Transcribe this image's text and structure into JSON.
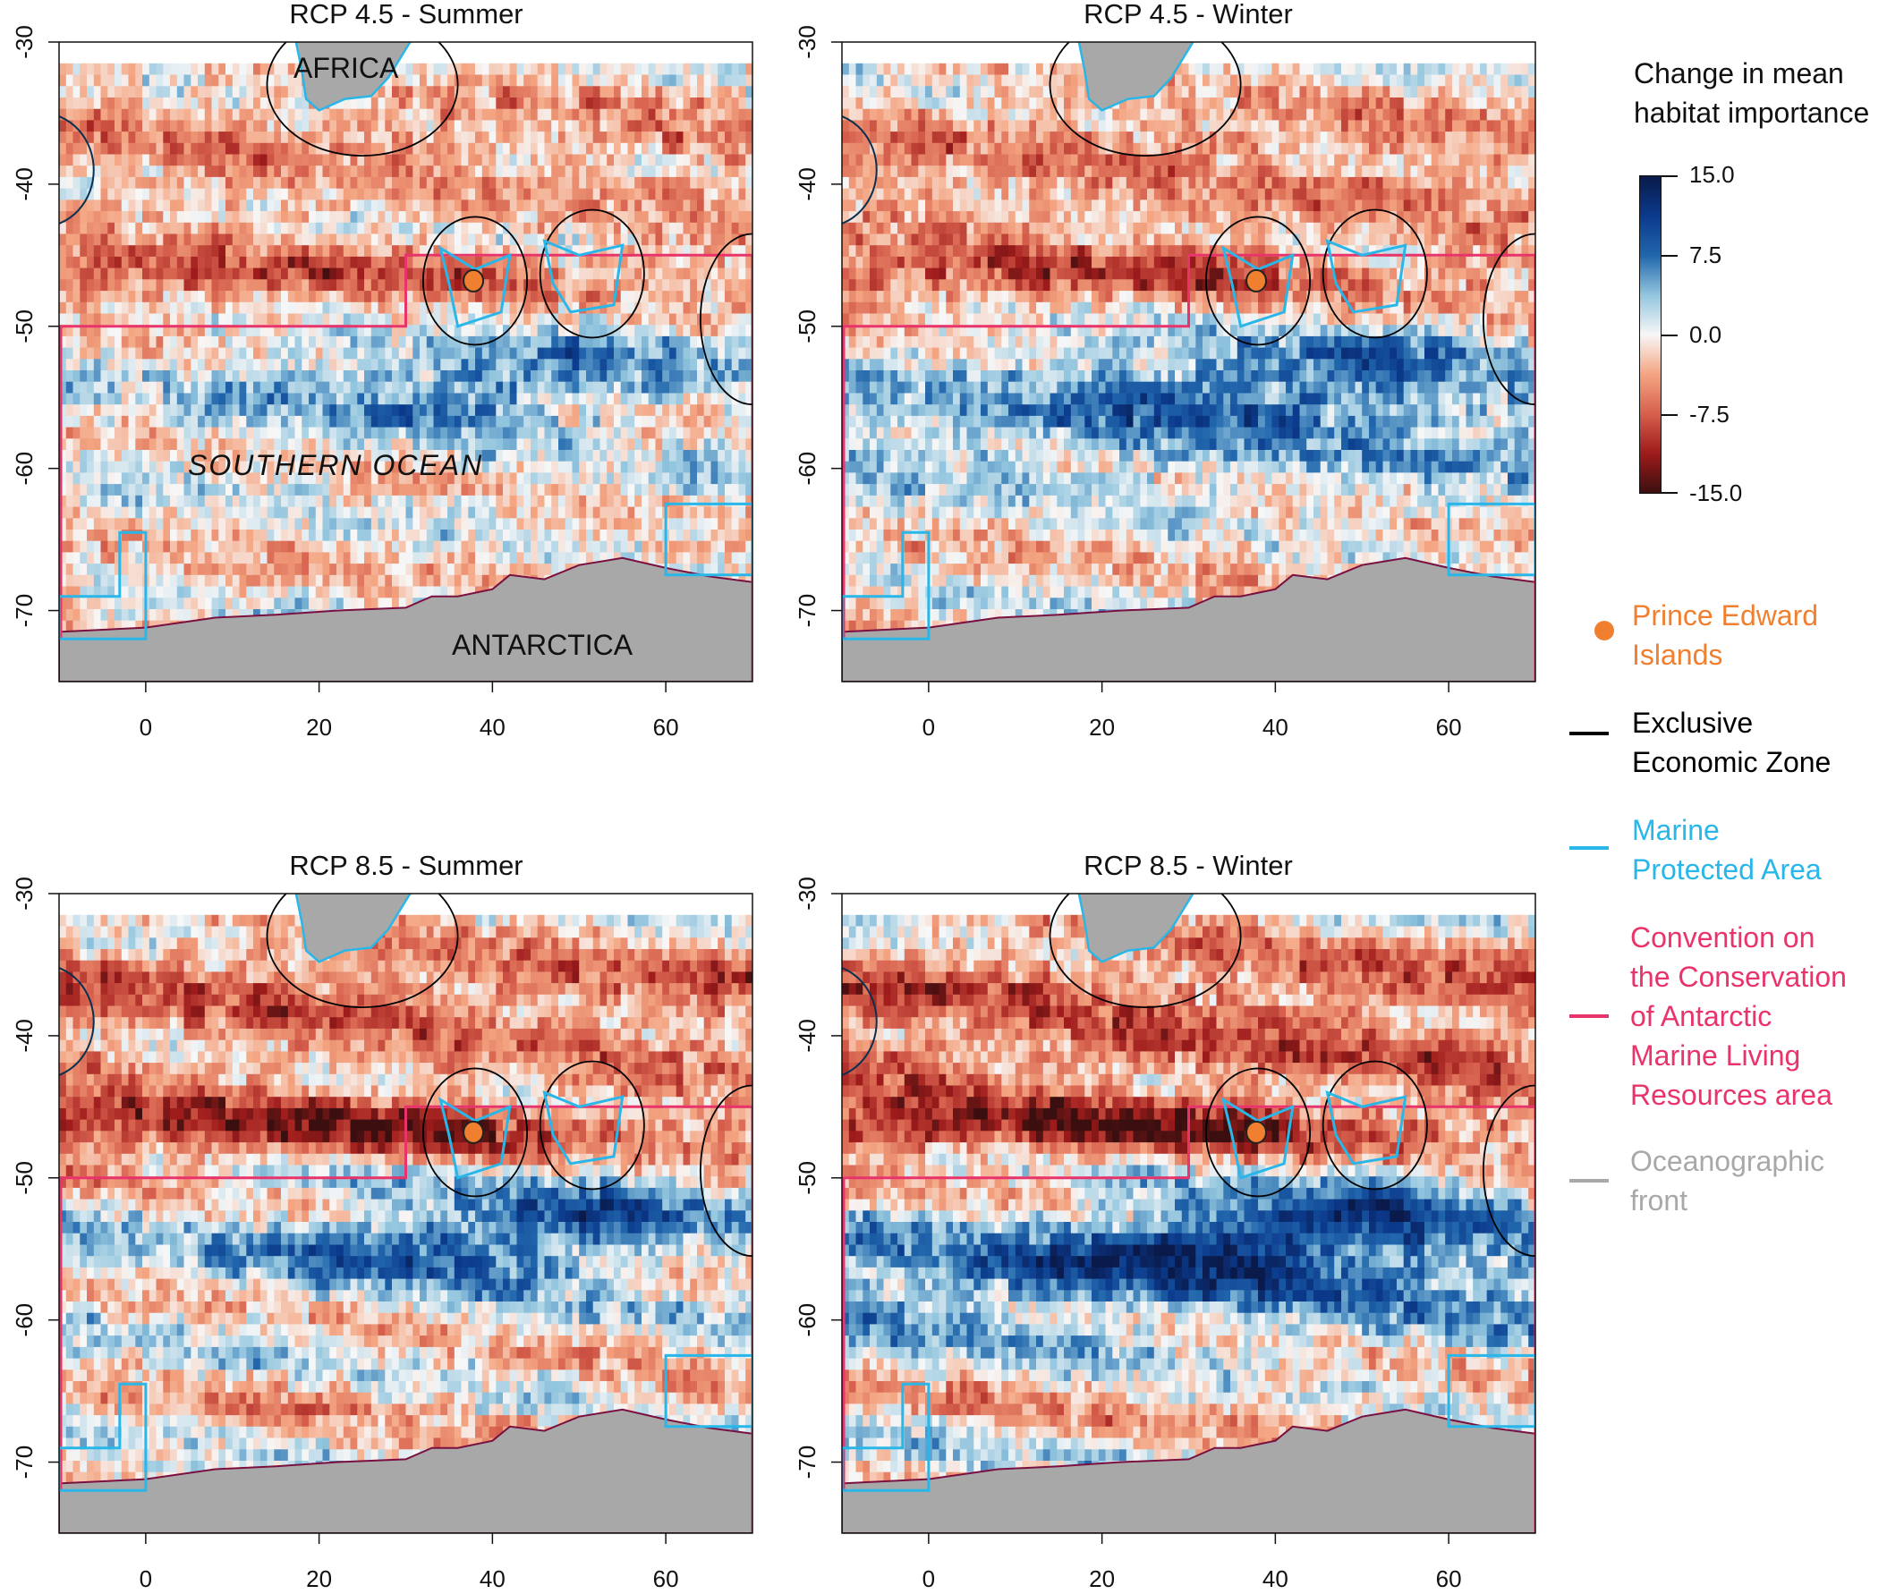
{
  "panels": [
    {
      "title": "RCP 4.5 - Summer"
    },
    {
      "title": "RCP 4.5 - Winter"
    },
    {
      "title": "RCP 8.5 - Summer"
    },
    {
      "title": "RCP 8.5 - Winter"
    }
  ],
  "axes": {
    "x_ticks": [
      "0",
      "20",
      "40",
      "60"
    ],
    "y_ticks": [
      "-30",
      "-40",
      "-50",
      "-60",
      "-70"
    ],
    "x_range": [
      -10,
      70
    ],
    "y_range": [
      -75,
      -30
    ]
  },
  "place_labels": {
    "africa": "AFRICA",
    "southern_ocean": "SOUTHERN OCEAN",
    "antarctica": "ANTARCTICA"
  },
  "colorbar": {
    "title_line1": "Change in mean",
    "title_line2": "habitat importance",
    "ticks": [
      "15.0",
      "7.5",
      "0.0",
      "-7.5",
      "-15.0"
    ],
    "range": [
      -15,
      15
    ],
    "colors": [
      "#3b0f0f",
      "#9e1b1b",
      "#d6604d",
      "#f4a582",
      "#f7f7f7",
      "#92c5de",
      "#2166ac",
      "#0b3a8c",
      "#0a1a4a"
    ]
  },
  "legend": {
    "items": [
      {
        "label_line1": "Prince Edward",
        "label_line2": "Islands",
        "color": "#f08030",
        "symbol": "dot"
      },
      {
        "label_line1": "Exclusive",
        "label_line2": "Economic Zone",
        "color": "#000000",
        "symbol": "line"
      },
      {
        "label_line1": "Marine",
        "label_line2": "Protected Area",
        "color": "#29b6e8",
        "symbol": "line"
      },
      {
        "label_line1": "Convention on",
        "label_line2": "the Conservation",
        "label_line3": "of Antarctic",
        "label_line4": "Marine Living",
        "label_line5": "Resources area",
        "color": "#e8346a",
        "symbol": "line"
      },
      {
        "label_line1": "Oceanographic",
        "label_line2": "front",
        "color": "#a8a8a8",
        "symbol": "line"
      }
    ]
  },
  "colors": {
    "land": "#a8a8a8",
    "eez": "#000000",
    "mpa": "#29b6e8",
    "ccamlr": "#e8346a",
    "islands": "#f08030"
  }
}
